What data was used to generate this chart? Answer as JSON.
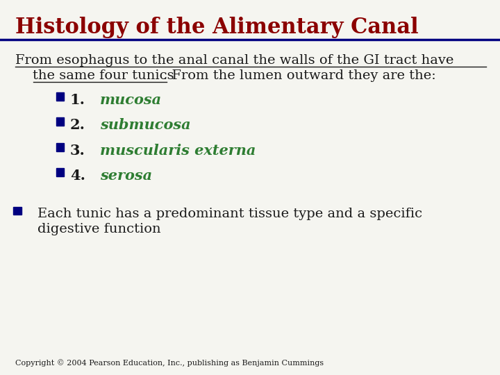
{
  "title": "Histology of the Alimentary Canal",
  "title_color": "#8B0000",
  "title_fontsize": 22,
  "divider_color": "#000080",
  "background_color": "#F5F5F0",
  "body_text_color": "#1a1a1a",
  "green_color": "#2E7D32",
  "bullet_color": "#000080",
  "intro_line1": "From esophagus to the anal canal the walls of the GI tract have",
  "intro_line2_underlined": "    the same four tunics",
  "intro_line2_normal": ". From the lumen outward they are the:",
  "items": [
    {
      "number": "1.",
      "label": "mucosa"
    },
    {
      "number": "2.",
      "label": "submucosa"
    },
    {
      "number": "3.",
      "label": "muscularis externa"
    },
    {
      "number": "4.",
      "label": "serosa"
    }
  ],
  "footer_bullet_text1": "Each tunic has a predominant tissue type and a specific",
  "footer_bullet_text2": "digestive function",
  "copyright": "Copyright © 2004 Pearson Education, Inc., publishing as Benjamin Cummings",
  "copyright_fontsize": 8,
  "body_fontsize": 14,
  "item_fontsize": 15,
  "footer_fontsize": 14
}
